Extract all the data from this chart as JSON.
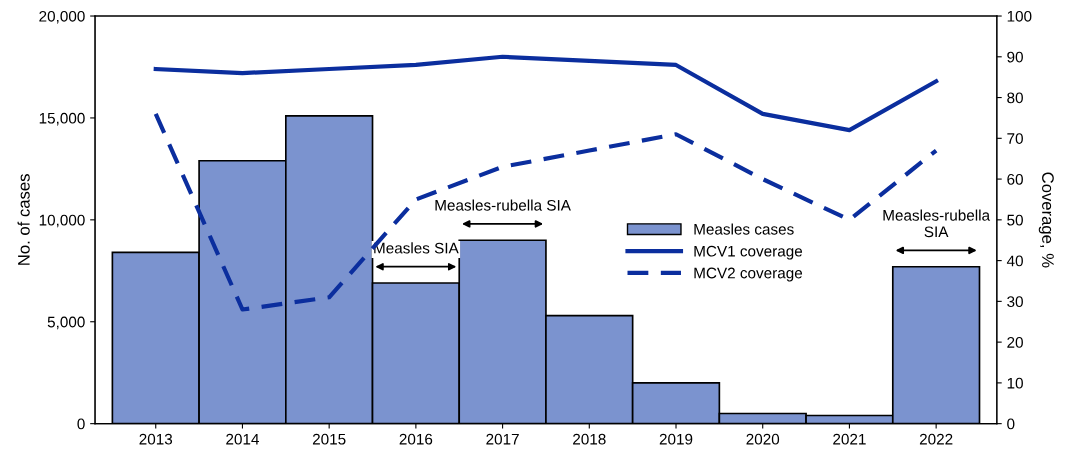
{
  "chart_data": {
    "type": "bar",
    "categories": [
      "2013",
      "2014",
      "2015",
      "2016",
      "2017",
      "2018",
      "2019",
      "2020",
      "2021",
      "2022"
    ],
    "series": [
      {
        "name": "Measles cases",
        "type": "bar",
        "color": "#7b93cf",
        "values": [
          8400,
          12900,
          15100,
          6900,
          9000,
          5300,
          2000,
          500,
          400,
          7700
        ]
      },
      {
        "name": "MCV1 coverage",
        "type": "line",
        "axis": "y2",
        "line_style": "solid",
        "color": "#0b2e9e",
        "values": [
          87,
          86,
          87,
          88,
          90,
          89,
          88,
          76,
          72,
          84
        ]
      },
      {
        "name": "MCV2 coverage",
        "type": "line",
        "axis": "y2",
        "line_style": "dashed",
        "color": "#0b2e9e",
        "values": [
          76,
          28,
          31,
          55,
          63,
          67,
          71,
          60,
          50,
          67
        ]
      }
    ],
    "ylabel": "No. of cases",
    "y2label": "Coverage, %",
    "ylim": [
      0,
      20000
    ],
    "yticks": [
      {
        "value": 0,
        "label": "0"
      },
      {
        "value": 5000,
        "label": "5,000"
      },
      {
        "value": 10000,
        "label": "10,000"
      },
      {
        "value": 15000,
        "label": "15,000"
      },
      {
        "value": 20000,
        "label": "20,000"
      }
    ],
    "y2lim": [
      0,
      100
    ],
    "y2ticks": [
      0,
      10,
      20,
      30,
      40,
      50,
      60,
      70,
      80,
      90,
      100
    ],
    "annotations": [
      {
        "text": "Measles SIA",
        "x": "2016",
        "y": 6900
      },
      {
        "text": "Measles-rubella SIA",
        "x": "2017",
        "y": 9000
      },
      {
        "text": "Measles-rubella\nSIA",
        "x": "2022",
        "y": 7700
      }
    ],
    "legend": "right",
    "grid": false
  }
}
